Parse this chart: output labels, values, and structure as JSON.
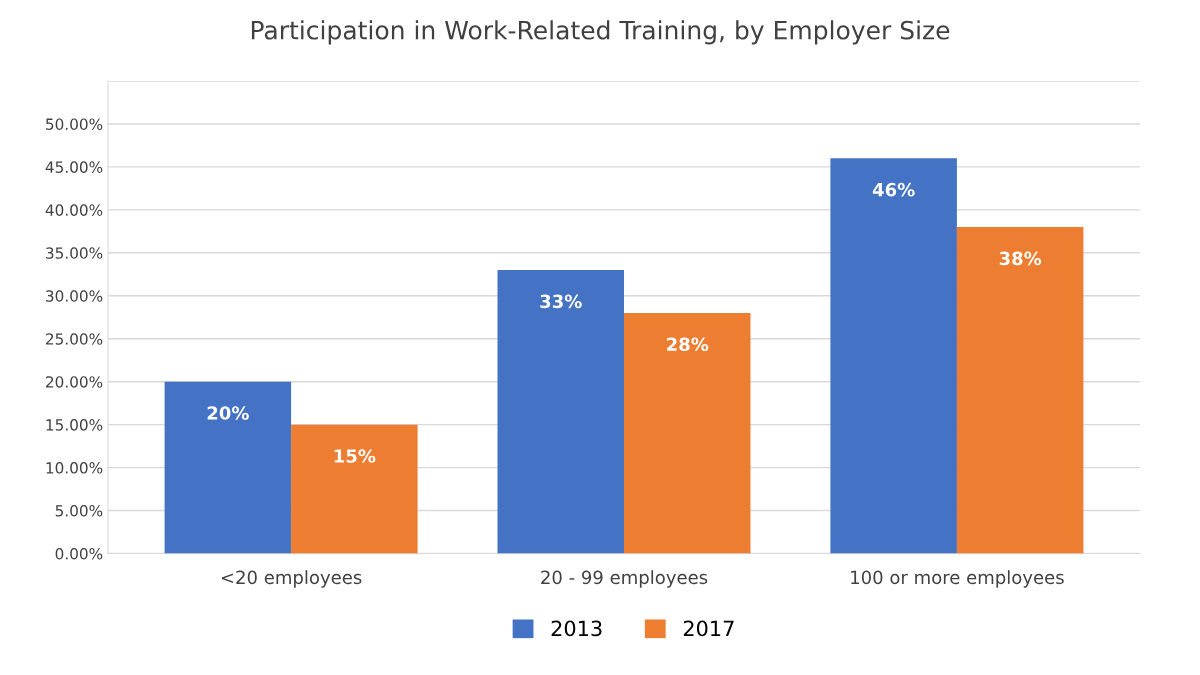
{
  "chart_data": {
    "type": "bar",
    "title": "Participation in Work-Related Training, by Employer Size",
    "categories": [
      "<20 employees",
      "20 - 99 employees",
      "100 or more employees"
    ],
    "series": [
      {
        "name": "2013",
        "color": "#4472c4",
        "values": [
          20,
          33,
          46
        ],
        "value_labels": [
          "20%",
          "33%",
          "46%"
        ]
      },
      {
        "name": "2017",
        "color": "#ed7d31",
        "values": [
          15,
          28,
          38
        ],
        "value_labels": [
          "15%",
          "28%",
          "38%"
        ]
      }
    ],
    "ylim": [
      0,
      55
    ],
    "yticks": [
      {
        "value": 0,
        "label": "0.00%"
      },
      {
        "value": 5,
        "label": "5.00%"
      },
      {
        "value": 10,
        "label": "10.00%"
      },
      {
        "value": 15,
        "label": "15.00%"
      },
      {
        "value": 20,
        "label": "20.00%"
      },
      {
        "value": 25,
        "label": "25.00%"
      },
      {
        "value": 30,
        "label": "30.00%"
      },
      {
        "value": 35,
        "label": "35.00%"
      },
      {
        "value": 40,
        "label": "40.00%"
      },
      {
        "value": 45,
        "label": "45.00%"
      },
      {
        "value": 50,
        "label": "50.00%"
      },
      {
        "value": 55,
        "label": null
      }
    ],
    "grid": "y",
    "legend": "bottom"
  }
}
